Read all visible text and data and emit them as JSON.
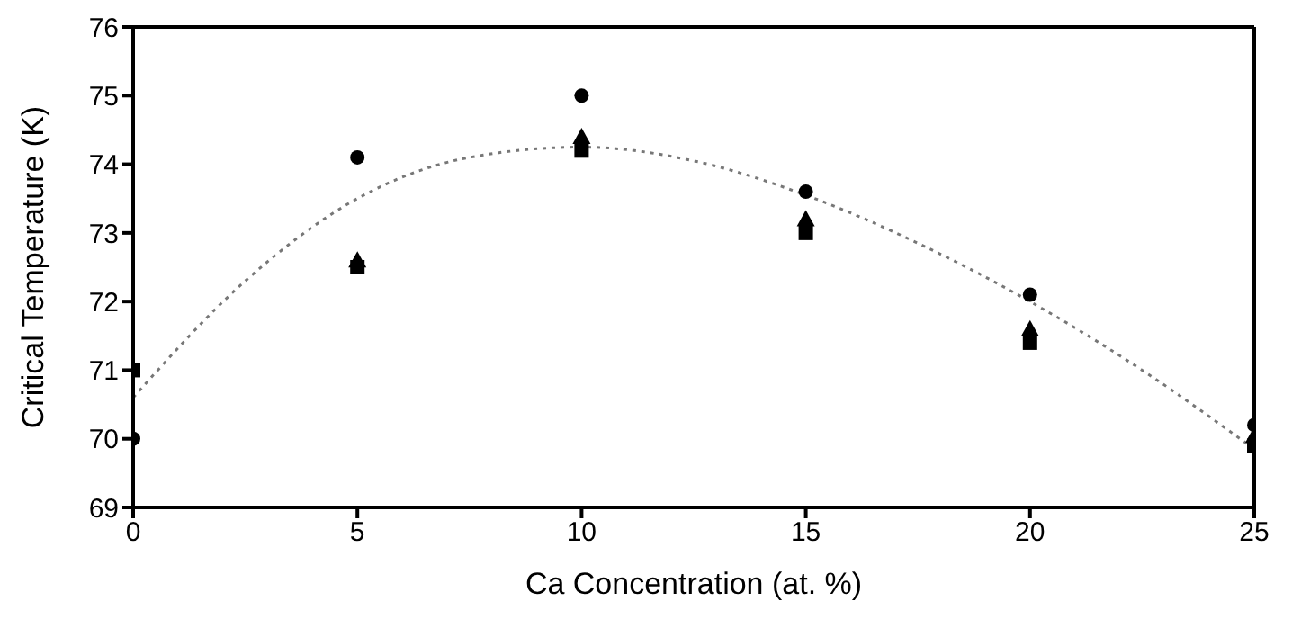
{
  "chart_data": {
    "type": "scatter",
    "xlabel": "Ca Concentration (at. %)",
    "ylabel": "Critical Temperature (K)",
    "xlim": [
      0,
      25
    ],
    "xticks": [
      0,
      5,
      10,
      15,
      20,
      25
    ],
    "ylim": [
      69,
      76
    ],
    "yticks": [
      69,
      70,
      71,
      72,
      73,
      74,
      75,
      76
    ],
    "series": [
      {
        "color": "#000000",
        "marker": "circle",
        "x": [
          0,
          5,
          10,
          15,
          20,
          25
        ],
        "values": [
          70,
          74.1,
          75.0,
          73.6,
          72.1,
          70.2
        ]
      },
      {
        "color": "#000000",
        "marker": "square",
        "x": [
          0,
          5,
          10,
          15,
          20,
          25
        ],
        "values": [
          71,
          72.5,
          74.2,
          73.0,
          71.4,
          69.9
        ]
      },
      {
        "color": "#000000",
        "marker": "triangle",
        "x": [
          5,
          10,
          15,
          20,
          25
        ],
        "values": [
          72.6,
          74.4,
          73.2,
          71.6,
          70.05
        ]
      },
      {
        "type": "line",
        "color": "#777777",
        "marker": "none",
        "line_style": "dotted",
        "x": [
          0,
          2.5,
          5,
          7.5,
          10,
          12.5,
          15,
          17.5,
          20,
          22.5,
          25
        ],
        "values": [
          70.6,
          72.3,
          73.5,
          74.1,
          74.25,
          74.05,
          73.55,
          72.85,
          72.0,
          71.0,
          69.85
        ]
      }
    ]
  }
}
